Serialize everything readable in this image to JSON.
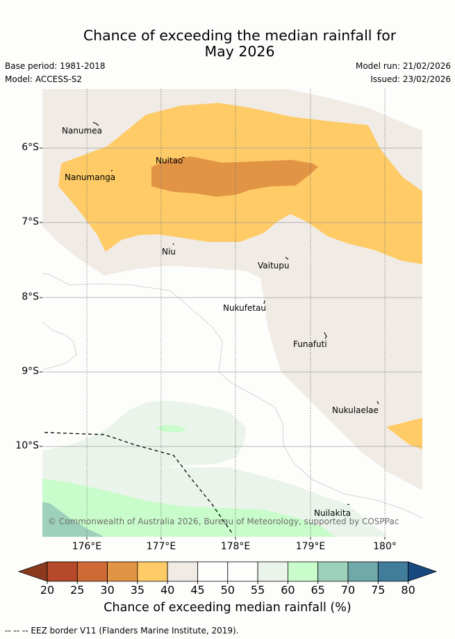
{
  "title_line1": "Chance of exceeding the median rainfall for",
  "title_line2": "May 2026",
  "base_period": "Base period: 1981-2018",
  "model": "Model: ACCESS-S2",
  "model_run": "Model run: 21/02/2026",
  "issued": "Issued: 23/02/2026",
  "copyright": "© Commonwealth of Australia 2026, Bureau of Meteorology, supported by COSPPac",
  "footnote": "-- -- -- EEZ border V11 (Flanders Marine Institute, 2019).",
  "axes": {
    "latitude_labels": [
      "6°S",
      "7°S",
      "8°S",
      "9°S",
      "10°S"
    ],
    "longitude_labels": [
      "176°E",
      "177°E",
      "178°E",
      "179°E",
      "180°"
    ]
  },
  "places": [
    {
      "name": "Nanumea"
    },
    {
      "name": "Nuitao"
    },
    {
      "name": "Nanumanga"
    },
    {
      "name": "Niu"
    },
    {
      "name": "Vaitupu"
    },
    {
      "name": "Nukufetau"
    },
    {
      "name": "Funafuti"
    },
    {
      "name": "Nukulaelae"
    },
    {
      "name": "Nuilakita"
    }
  ],
  "colorbar": {
    "title": "Chance of exceeding median rainfall (%)",
    "ticks": [
      "20",
      "25",
      "30",
      "35",
      "40",
      "45",
      "50",
      "55",
      "60",
      "65",
      "70",
      "75",
      "80"
    ],
    "colors": {
      "below_20": "#8b3a1e",
      "c20_25": "#b5492a",
      "c25_30": "#d06a35",
      "c30_35": "#e29445",
      "c35_40": "#fecb66",
      "c40_45": "#f1ebe6",
      "c45_50": "#fdfefc",
      "c50_55": "#fdfefc",
      "c55_60": "#ebf4ea",
      "c60_65": "#c8fcca",
      "c65_70": "#9dd1bb",
      "c70_75": "#70a9aa",
      "c75_80": "#417c9a",
      "above_80": "#17497f"
    }
  }
}
